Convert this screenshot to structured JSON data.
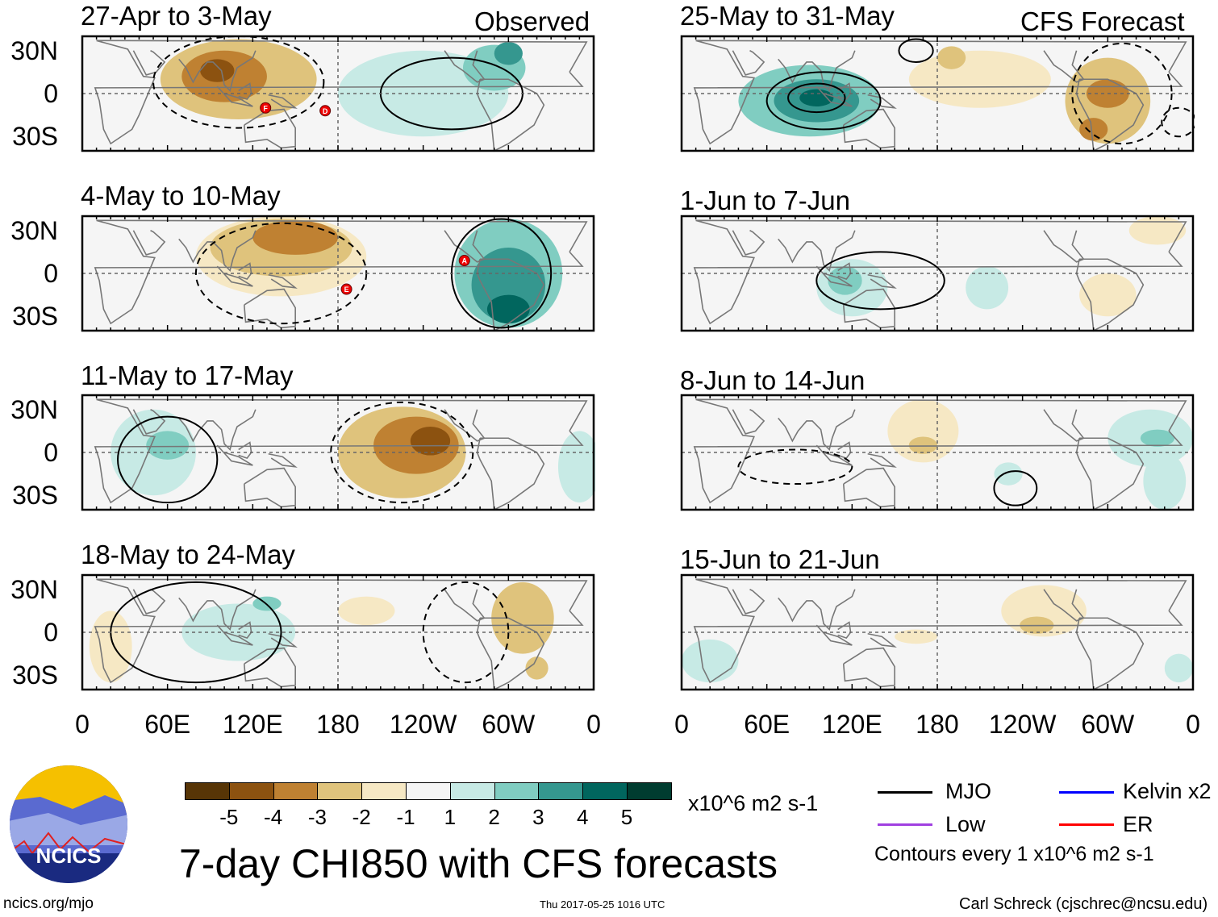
{
  "column_labels": {
    "left": "Observed",
    "right": "CFS Forecast"
  },
  "y_ticks": [
    "30N",
    "0",
    "30S"
  ],
  "x_ticks": [
    "0",
    "60E",
    "120E",
    "180",
    "120W",
    "60W",
    "0"
  ],
  "colorbar": {
    "colors": [
      "#573506",
      "#8c5210",
      "#bf8132",
      "#dfc37c",
      "#f6e8c4",
      "#f5f5f5",
      "#c7eae5",
      "#80cdc1",
      "#35978f",
      "#01665e",
      "#003c30"
    ],
    "labels": [
      "-5",
      "-4",
      "-3",
      "-2",
      "-1",
      "1",
      "2",
      "3",
      "4",
      "5"
    ],
    "units": "x10^6 m2 s-1"
  },
  "title": "7-day CHI850 with CFS forecasts",
  "legend": {
    "items": [
      {
        "label": "MJO",
        "color": "#000000"
      },
      {
        "label": "Kelvin x2",
        "color": "#0000ff"
      },
      {
        "label": "Low",
        "color": "#a040e0"
      },
      {
        "label": "ER",
        "color": "#ff0000"
      }
    ],
    "note": "Contours every 1 x10^6 m2 s-1"
  },
  "logo_text": "NCICS",
  "footer": {
    "left": "ncics.org/mjo",
    "center": "Thu 2017-05-25 1016 UTC",
    "right": "Carl Schreck (cjschrec@ncsu.edu)"
  },
  "chart_data": {
    "type": "map-panels",
    "variable": "7-day CHI850 anomaly",
    "units": "x10^6 m2 s-1",
    "lon_range": [
      0,
      360
    ],
    "lat_range": [
      -40,
      40
    ],
    "panels": [
      {
        "title": "27-Apr to 3-May",
        "kind": "Observed",
        "anomalies": [
          {
            "lon": 110,
            "lat": 10,
            "rlon": 55,
            "rlat": 28,
            "level": -2
          },
          {
            "lon": 100,
            "lat": 12,
            "rlon": 30,
            "rlat": 18,
            "level": -3
          },
          {
            "lon": 95,
            "lat": 16,
            "rlon": 12,
            "rlat": 8,
            "level": -4
          },
          {
            "lon": 240,
            "lat": 0,
            "rlon": 60,
            "rlat": 30,
            "level": 1
          },
          {
            "lon": 290,
            "lat": 18,
            "rlon": 22,
            "rlat": 16,
            "level": 2
          },
          {
            "lon": 300,
            "lat": 28,
            "rlon": 10,
            "rlat": 8,
            "level": 3
          }
        ],
        "contours": [
          {
            "lon": 260,
            "lat": 0,
            "rlon": 50,
            "rlat": 25,
            "sign": 1
          },
          {
            "lon": 110,
            "lat": 8,
            "rlon": 60,
            "rlat": 32,
            "sign": -1
          }
        ],
        "storms": [
          {
            "label": "F",
            "lon": 129,
            "lat": -10
          },
          {
            "label": "D",
            "lon": 171,
            "lat": -12
          }
        ]
      },
      {
        "title": "4-May to 10-May",
        "kind": "Observed",
        "anomalies": [
          {
            "lon": 140,
            "lat": 12,
            "rlon": 60,
            "rlat": 28,
            "level": -1
          },
          {
            "lon": 140,
            "lat": 18,
            "rlon": 50,
            "rlat": 20,
            "level": -2
          },
          {
            "lon": 150,
            "lat": 25,
            "rlon": 30,
            "rlat": 12,
            "level": -3
          },
          {
            "lon": 300,
            "lat": 0,
            "rlon": 38,
            "rlat": 38,
            "level": 2
          },
          {
            "lon": 300,
            "lat": -8,
            "rlon": 26,
            "rlat": 26,
            "level": 3
          },
          {
            "lon": 300,
            "lat": -25,
            "rlon": 15,
            "rlat": 10,
            "level": 4
          }
        ],
        "contours": [
          {
            "lon": 295,
            "lat": 0,
            "rlon": 35,
            "rlat": 38,
            "sign": 1
          },
          {
            "lon": 140,
            "lat": 0,
            "rlon": 60,
            "rlat": 35,
            "sign": -1
          }
        ],
        "storms": [
          {
            "label": "A",
            "lon": 269,
            "lat": 9
          },
          {
            "label": "E",
            "lon": 186,
            "lat": -11
          }
        ]
      },
      {
        "title": "11-May to 17-May",
        "kind": "Observed",
        "anomalies": [
          {
            "lon": 225,
            "lat": 0,
            "rlon": 45,
            "rlat": 32,
            "level": -2
          },
          {
            "lon": 235,
            "lat": 5,
            "rlon": 30,
            "rlat": 20,
            "level": -3
          },
          {
            "lon": 245,
            "lat": 8,
            "rlon": 14,
            "rlat": 10,
            "level": -4
          },
          {
            "lon": 50,
            "lat": 0,
            "rlon": 30,
            "rlat": 30,
            "level": 1
          },
          {
            "lon": 60,
            "lat": 5,
            "rlon": 15,
            "rlat": 10,
            "level": 2
          },
          {
            "lon": 350,
            "lat": -10,
            "rlon": 15,
            "rlat": 25,
            "level": 1
          }
        ],
        "contours": [
          {
            "lon": 60,
            "lat": -5,
            "rlon": 35,
            "rlat": 30,
            "sign": 1
          },
          {
            "lon": 225,
            "lat": 0,
            "rlon": 50,
            "rlat": 35,
            "sign": -1
          }
        ],
        "storms": []
      },
      {
        "title": "18-May to 24-May",
        "kind": "Observed",
        "anomalies": [
          {
            "lon": 20,
            "lat": -10,
            "rlon": 15,
            "rlat": 25,
            "level": -1
          },
          {
            "lon": 110,
            "lat": 0,
            "rlon": 40,
            "rlat": 20,
            "level": 1
          },
          {
            "lon": 130,
            "lat": 20,
            "rlon": 10,
            "rlat": 5,
            "level": 2
          },
          {
            "lon": 310,
            "lat": 10,
            "rlon": 22,
            "rlat": 25,
            "level": -2
          },
          {
            "lon": 320,
            "lat": -25,
            "rlon": 8,
            "rlat": 8,
            "level": -2
          },
          {
            "lon": 200,
            "lat": 15,
            "rlon": 20,
            "rlat": 10,
            "level": -1
          }
        ],
        "contours": [
          {
            "lon": 270,
            "lat": 0,
            "rlon": 30,
            "rlat": 35,
            "sign": -1
          },
          {
            "lon": 80,
            "lat": 0,
            "rlon": 60,
            "rlat": 35,
            "sign": 1
          }
        ],
        "storms": []
      },
      {
        "title": "25-May to 31-May",
        "kind": "CFS Forecast",
        "anomalies": [
          {
            "lon": 90,
            "lat": -5,
            "rlon": 50,
            "rlat": 25,
            "level": 2
          },
          {
            "lon": 95,
            "lat": -5,
            "rlon": 30,
            "rlat": 15,
            "level": 3
          },
          {
            "lon": 95,
            "lat": -3,
            "rlon": 12,
            "rlat": 6,
            "level": 4
          },
          {
            "lon": 210,
            "lat": 10,
            "rlon": 50,
            "rlat": 20,
            "level": -1
          },
          {
            "lon": 190,
            "lat": 25,
            "rlon": 10,
            "rlat": 8,
            "level": -2
          },
          {
            "lon": 300,
            "lat": -5,
            "rlon": 30,
            "rlat": 30,
            "level": -2
          },
          {
            "lon": 300,
            "lat": 0,
            "rlon": 15,
            "rlat": 10,
            "level": -3
          },
          {
            "lon": 290,
            "lat": -25,
            "rlon": 10,
            "rlat": 8,
            "level": -3
          }
        ],
        "contours": [
          {
            "lon": 100,
            "lat": -5,
            "rlon": 40,
            "rlat": 20,
            "sign": 1
          },
          {
            "lon": 95,
            "lat": -3,
            "rlon": 20,
            "rlat": 10,
            "sign": 1
          },
          {
            "lon": 310,
            "lat": 0,
            "rlon": 35,
            "rlat": 35,
            "sign": -1
          },
          {
            "lon": 165,
            "lat": 30,
            "rlon": 12,
            "rlat": 8,
            "sign": 1
          },
          {
            "lon": 350,
            "lat": -20,
            "rlon": 12,
            "rlat": 10,
            "sign": -1
          }
        ],
        "storms": []
      },
      {
        "title": "1-Jun to 7-Jun",
        "kind": "CFS Forecast",
        "anomalies": [
          {
            "lon": 120,
            "lat": -10,
            "rlon": 25,
            "rlat": 20,
            "level": 1
          },
          {
            "lon": 115,
            "lat": -5,
            "rlon": 12,
            "rlat": 10,
            "level": 2
          },
          {
            "lon": 215,
            "lat": -10,
            "rlon": 15,
            "rlat": 15,
            "level": 1
          },
          {
            "lon": 335,
            "lat": 30,
            "rlon": 20,
            "rlat": 10,
            "level": -1
          },
          {
            "lon": 300,
            "lat": -15,
            "rlon": 20,
            "rlat": 15,
            "level": -1
          }
        ],
        "contours": [
          {
            "lon": 140,
            "lat": -5,
            "rlon": 45,
            "rlat": 20,
            "sign": 1
          }
        ],
        "storms": []
      },
      {
        "title": "8-Jun to 14-Jun",
        "kind": "CFS Forecast",
        "anomalies": [
          {
            "lon": 170,
            "lat": 15,
            "rlon": 25,
            "rlat": 22,
            "level": -1
          },
          {
            "lon": 170,
            "lat": 5,
            "rlon": 10,
            "rlat": 6,
            "level": -2
          },
          {
            "lon": 330,
            "lat": 10,
            "rlon": 30,
            "rlat": 20,
            "level": 1
          },
          {
            "lon": 335,
            "lat": 10,
            "rlon": 12,
            "rlat": 6,
            "level": 2
          },
          {
            "lon": 340,
            "lat": -20,
            "rlon": 15,
            "rlat": 20,
            "level": 1
          },
          {
            "lon": 230,
            "lat": -15,
            "rlon": 10,
            "rlat": 8,
            "level": 1
          }
        ],
        "contours": [
          {
            "lon": 80,
            "lat": -10,
            "rlon": 40,
            "rlat": 12,
            "sign": -1
          },
          {
            "lon": 235,
            "lat": -25,
            "rlon": 15,
            "rlat": 12,
            "sign": 1
          }
        ],
        "storms": []
      },
      {
        "title": "15-Jun to 21-Jun",
        "kind": "CFS Forecast",
        "anomalies": [
          {
            "lon": 255,
            "lat": 15,
            "rlon": 30,
            "rlat": 18,
            "level": -1
          },
          {
            "lon": 250,
            "lat": 5,
            "rlon": 12,
            "rlat": 6,
            "level": -2
          },
          {
            "lon": 20,
            "lat": -20,
            "rlon": 20,
            "rlat": 15,
            "level": 1
          },
          {
            "lon": 165,
            "lat": -3,
            "rlon": 15,
            "rlat": 5,
            "level": -1
          },
          {
            "lon": 350,
            "lat": -25,
            "rlon": 10,
            "rlat": 10,
            "level": 1
          }
        ],
        "contours": [],
        "storms": []
      }
    ]
  }
}
